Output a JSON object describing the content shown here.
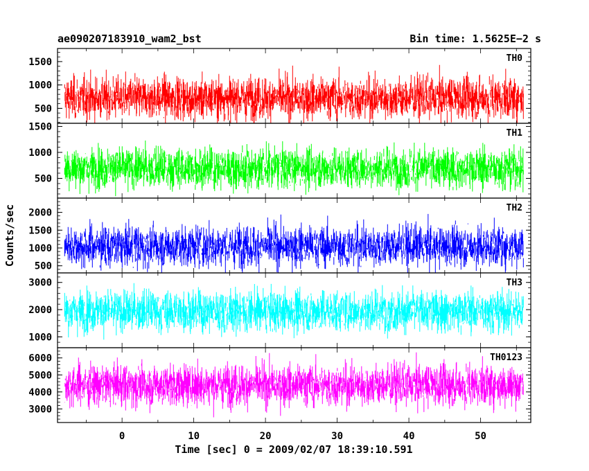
{
  "header": {
    "left_title": "ae090207183910_wam2_bst",
    "right_title": "Bin time: 1.5625E−2 s"
  },
  "chart_data": {
    "type": "line",
    "title": "ae090207183910_wam2_bst",
    "subtitle": "Bin time: 1.5625E−2 s",
    "xlabel": "Time [sec] 0 = 2009/02/07 18:39:10.591",
    "ylabel": "Counts/sec",
    "xlim": [
      -9,
      57
    ],
    "x_ticks": [
      0,
      10,
      20,
      30,
      40,
      50
    ],
    "data_x_range": [
      -8,
      56
    ],
    "bin_time": 0.015625,
    "grid": false,
    "panels": [
      {
        "name": "TH0",
        "color": "#ff0000",
        "ylim": [
          180,
          1780
        ],
        "y_ticks": [
          500,
          1000,
          1500
        ],
        "mean": 720,
        "noise_low": 160,
        "noise_high": 1780
      },
      {
        "name": "TH1",
        "color": "#00ff00",
        "ylim": [
          120,
          1560
        ],
        "y_ticks": [
          500,
          1000,
          1500
        ],
        "mean": 700,
        "noise_low": 150,
        "noise_high": 1560
      },
      {
        "name": "TH2",
        "color": "#0000ff",
        "ylim": [
          300,
          2400
        ],
        "y_ticks": [
          500,
          1000,
          1500,
          2000
        ],
        "mean": 1050,
        "noise_low": 330,
        "noise_high": 2400
      },
      {
        "name": "TH3",
        "color": "#00ffff",
        "ylim": [
          600,
          3350
        ],
        "y_ticks": [
          1000,
          2000,
          3000
        ],
        "mean": 1950,
        "noise_low": 620,
        "noise_high": 3350
      },
      {
        "name": "TH0123",
        "color": "#ff00ff",
        "ylim": [
          2200,
          6600
        ],
        "y_ticks": [
          3000,
          4000,
          5000,
          6000
        ],
        "mean": 4400,
        "noise_low": 2200,
        "noise_high": 6600
      }
    ]
  }
}
